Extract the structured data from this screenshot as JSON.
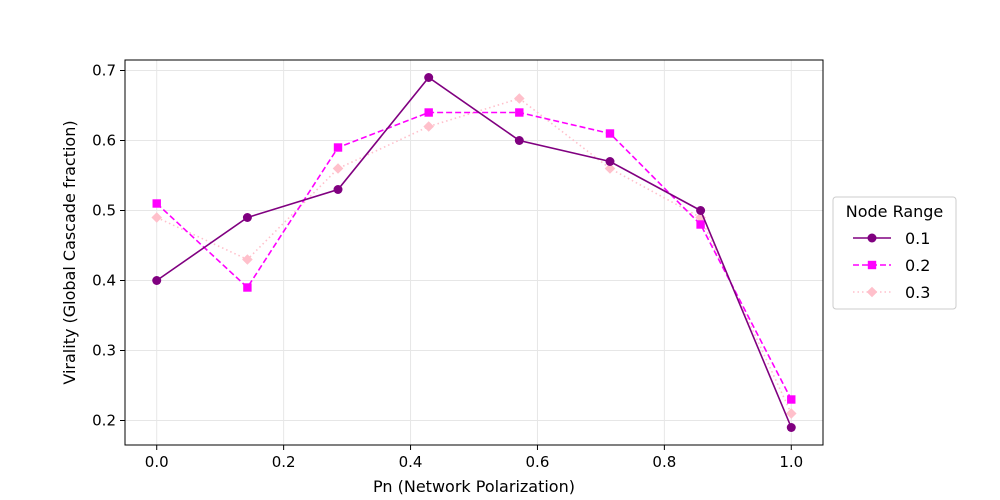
{
  "chart_data": {
    "type": "line",
    "title": "",
    "xlabel": "Pn (Network Polarization)",
    "ylabel": "Virality (Global Cascade fraction)",
    "xlim": [
      -0.05,
      1.05
    ],
    "ylim": [
      0.165,
      0.715
    ],
    "xticks": [
      "0.0",
      "0.2",
      "0.4",
      "0.6",
      "0.8",
      "1.0"
    ],
    "yticks": [
      "0.2",
      "0.3",
      "0.4",
      "0.5",
      "0.6",
      "0.7"
    ],
    "grid": true,
    "legend": {
      "title": "Node Range",
      "placement": "center-right-outside"
    },
    "x": [
      0.0,
      0.1429,
      0.2857,
      0.4286,
      0.5714,
      0.7143,
      0.8571,
      1.0
    ],
    "series": [
      {
        "name": "0.1",
        "values": [
          0.4,
          0.49,
          0.53,
          0.69,
          0.6,
          0.57,
          0.5,
          0.19
        ],
        "color": "#800080",
        "marker": "circle",
        "dash": "solid"
      },
      {
        "name": "0.2",
        "values": [
          0.51,
          0.39,
          0.59,
          0.64,
          0.64,
          0.61,
          0.48,
          0.23
        ],
        "color": "#ff00ff",
        "marker": "square",
        "dash": "dashed"
      },
      {
        "name": "0.3",
        "values": [
          0.49,
          0.43,
          0.56,
          0.62,
          0.66,
          0.56,
          0.49,
          0.21
        ],
        "color": "#ffc0cb",
        "marker": "diamond",
        "dash": "dotted"
      }
    ]
  }
}
